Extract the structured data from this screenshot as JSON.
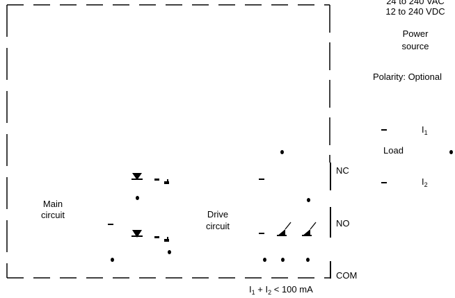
{
  "power": {
    "voltage_ac": "24 to 240 VAC",
    "voltage_dc": "12 to 240 VDC",
    "label_line1": "Power",
    "label_line2": "source",
    "polarity": "Polarity: Optional"
  },
  "load": {
    "label": "Load",
    "i1_base": "I",
    "i1_sub": "1",
    "i2_base": "I",
    "i2_sub": "2"
  },
  "terminals": {
    "nc": "NC",
    "no": "NO",
    "com": "COM"
  },
  "main_circuit": {
    "line1": "Main",
    "line2": "circuit"
  },
  "drive_circuit": {
    "line1": "Drive",
    "line2": "circuit"
  },
  "current_note": {
    "i1": "I",
    "i1_sub": "1",
    "plus": "+",
    "i2": "I",
    "i2_sub": "2",
    "rest": "< 100 mA"
  },
  "colors": {
    "ink": "#000000",
    "background": "#ffffff"
  }
}
